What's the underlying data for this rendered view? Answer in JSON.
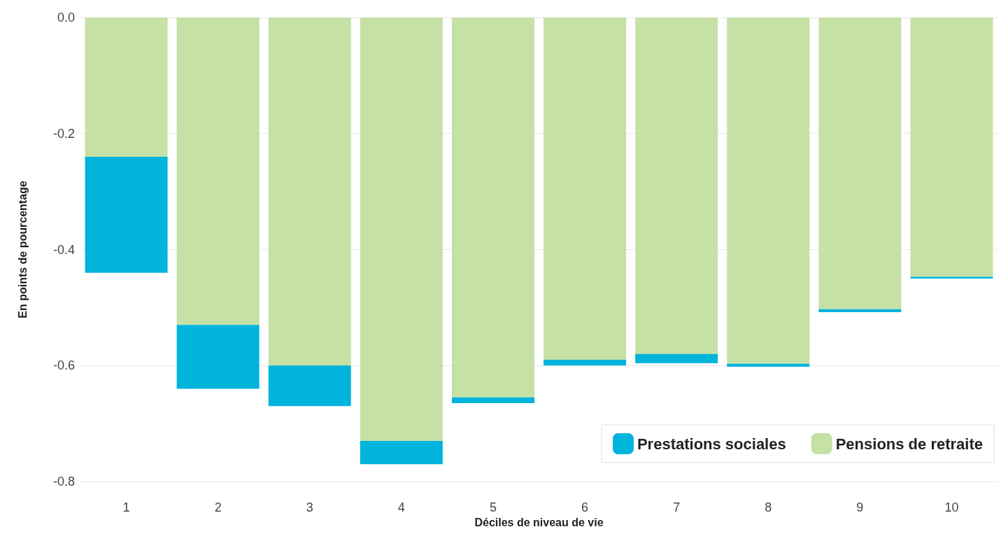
{
  "chart_data": {
    "type": "bar",
    "stacked": true,
    "xlabel": "Déciles de niveau de vie",
    "ylabel": "En points de pourcentage",
    "categories": [
      "1",
      "2",
      "3",
      "4",
      "5",
      "6",
      "7",
      "8",
      "9",
      "10"
    ],
    "series": [
      {
        "name": "Pensions de retraite",
        "color": "#c5e1a5",
        "values": [
          -0.24,
          -0.53,
          -0.6,
          -0.73,
          -0.655,
          -0.59,
          -0.58,
          -0.597,
          -0.503,
          -0.447
        ]
      },
      {
        "name": "Prestations sociales",
        "color": "#00b4dc",
        "values": [
          -0.2,
          -0.11,
          -0.07,
          -0.04,
          -0.01,
          -0.01,
          -0.016,
          -0.005,
          -0.005,
          -0.003
        ]
      }
    ],
    "ylim": [
      -0.8,
      0
    ],
    "yticks": [
      {
        "value": -0.8,
        "label": "-0.8"
      },
      {
        "value": -0.6,
        "label": "-0.6"
      },
      {
        "value": -0.4,
        "label": "-0.4"
      },
      {
        "value": -0.2,
        "label": "-0.2"
      },
      {
        "value": 0,
        "label": "0.0"
      }
    ],
    "grid": "y",
    "legend": "bottom right"
  }
}
